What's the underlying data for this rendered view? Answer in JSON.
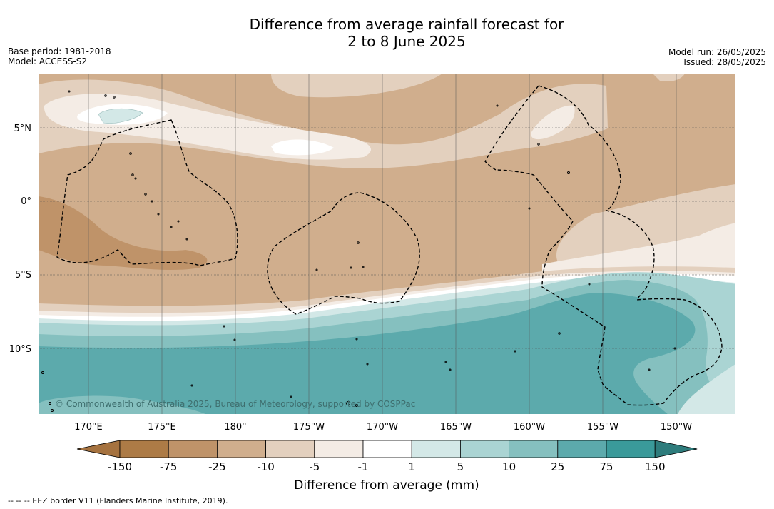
{
  "header": {
    "title_line1": "Difference from average rainfall forecast for",
    "title_line2": "2 to 8 June 2025",
    "base_period": "Base period: 1981-2018",
    "model": "Model: ACCESS-S2",
    "model_run": "Model run: 26/05/2025",
    "issued": "Issued: 28/05/2025"
  },
  "map": {
    "latitude_labels": [
      "5°N",
      "0°",
      "5°S",
      "10°S"
    ],
    "longitude_labels": [
      "170°E",
      "175°E",
      "180°",
      "175°W",
      "170°W",
      "165°W",
      "160°W",
      "155°W",
      "150°W"
    ],
    "copyright": "© Commonwealth of Australia 2025, Bureau of Meteorology, supported by COSPPac"
  },
  "colorbar": {
    "ticks": [
      "-150",
      "-75",
      "-25",
      "-10",
      "-5",
      "-1",
      "1",
      "5",
      "10",
      "25",
      "75",
      "150"
    ],
    "colors": [
      "#a5723f",
      "#ad7b46",
      "#bf9369",
      "#d0ae8d",
      "#e3d0be",
      "#f4ece5",
      "#ffffff",
      "#d3e8e7",
      "#aad4d3",
      "#85c0bf",
      "#5caaac",
      "#3a9a9a",
      "#2e7c7c"
    ],
    "label": "Difference from average (mm)"
  },
  "footnote": "--  --  -- EEZ border V11 (Flanders Marine Institute, 2019)."
}
